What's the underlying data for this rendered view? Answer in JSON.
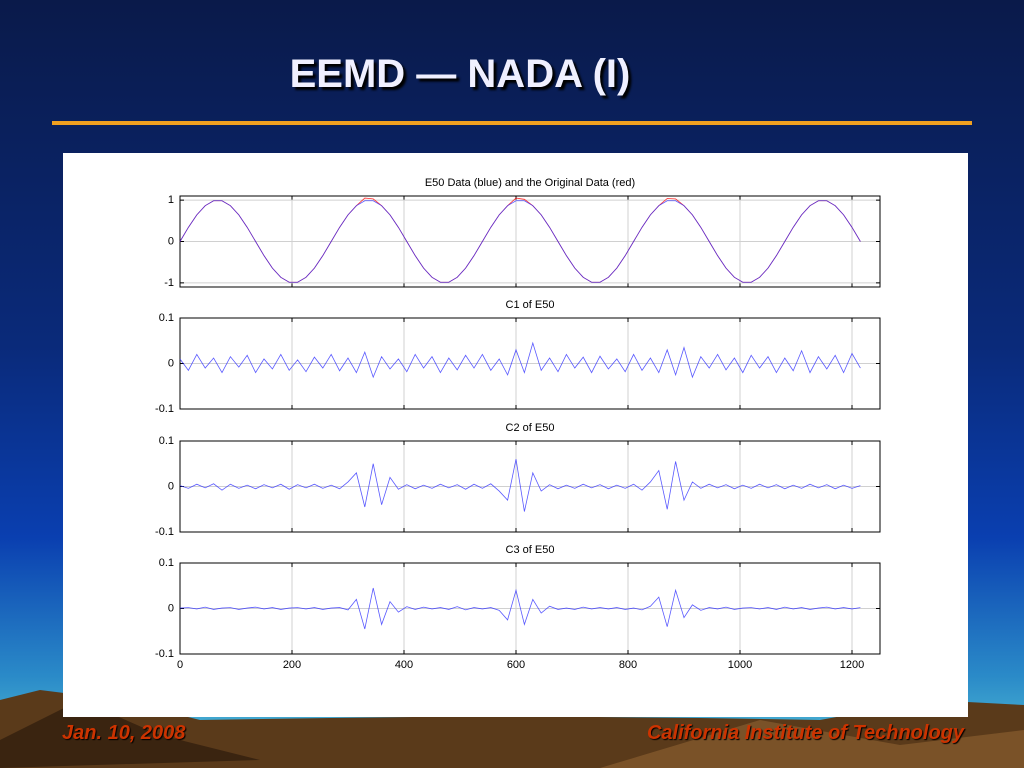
{
  "slide": {
    "title": "EEMD — NADA (I)",
    "date": "Jan. 10, 2008",
    "institution": "California Institute of Technology"
  },
  "chart_data": [
    {
      "type": "line",
      "title": "E50 Data (blue) and the Original Data (red)",
      "x": [
        0,
        15,
        30,
        45,
        60,
        75,
        90,
        105,
        120,
        135,
        150,
        165,
        180,
        195,
        210,
        225,
        240,
        255,
        270,
        285,
        300,
        315,
        330,
        345,
        360,
        375,
        390,
        405,
        420,
        435,
        450,
        465,
        480,
        495,
        510,
        525,
        540,
        555,
        570,
        585,
        600,
        615,
        630,
        645,
        660,
        675,
        690,
        705,
        720,
        735,
        750,
        765,
        780,
        795,
        810,
        825,
        840,
        855,
        870,
        885,
        900,
        915,
        930,
        945,
        960,
        975,
        990,
        1005,
        1020,
        1035,
        1050,
        1065,
        1080,
        1095,
        1110,
        1125,
        1140,
        1155,
        1170,
        1185,
        1200,
        1215
      ],
      "series": [
        {
          "color": "#ff0000",
          "values": [
            0,
            0.342,
            0.643,
            0.866,
            0.985,
            0.985,
            0.866,
            0.643,
            0.342,
            0,
            -0.342,
            -0.643,
            -0.866,
            -0.985,
            -0.985,
            -0.866,
            -0.643,
            -0.342,
            0,
            0.342,
            0.643,
            0.866,
            1.05,
            1.03,
            0.866,
            0.643,
            0.342,
            0,
            -0.342,
            -0.643,
            -0.866,
            -0.985,
            -0.985,
            -0.866,
            -0.643,
            -0.342,
            0,
            0.342,
            0.643,
            0.866,
            1.05,
            1.02,
            0.866,
            0.643,
            0.342,
            0,
            -0.342,
            -0.643,
            -0.866,
            -0.985,
            -0.985,
            -0.866,
            -0.643,
            -0.342,
            0,
            0.342,
            0.643,
            0.866,
            1.04,
            1.03,
            0.866,
            0.643,
            0.342,
            0,
            -0.342,
            -0.643,
            -0.866,
            -0.985,
            -0.985,
            -0.866,
            -0.643,
            -0.342,
            0,
            0.342,
            0.643,
            0.866,
            0.985,
            0.985,
            0.866,
            0.643,
            0.342,
            0
          ]
        },
        {
          "color": "#3030ff",
          "values": [
            0,
            0.342,
            0.643,
            0.866,
            0.985,
            0.985,
            0.866,
            0.643,
            0.342,
            0,
            -0.342,
            -0.643,
            -0.866,
            -0.985,
            -0.985,
            -0.866,
            -0.643,
            -0.342,
            0,
            0.342,
            0.643,
            0.866,
            0.985,
            0.985,
            0.866,
            0.643,
            0.342,
            0,
            -0.342,
            -0.643,
            -0.866,
            -0.985,
            -0.985,
            -0.866,
            -0.643,
            -0.342,
            0,
            0.342,
            0.643,
            0.866,
            0.985,
            0.985,
            0.866,
            0.643,
            0.342,
            0,
            -0.342,
            -0.643,
            -0.866,
            -0.985,
            -0.985,
            -0.866,
            -0.643,
            -0.342,
            0,
            0.342,
            0.643,
            0.866,
            0.985,
            0.985,
            0.866,
            0.643,
            0.342,
            0,
            -0.342,
            -0.643,
            -0.866,
            -0.985,
            -0.985,
            -0.866,
            -0.643,
            -0.342,
            0,
            0.342,
            0.643,
            0.866,
            0.985,
            0.985,
            0.866,
            0.643,
            0.342,
            0
          ]
        }
      ],
      "xlim": [
        0,
        1250
      ],
      "xticks": [
        0,
        200,
        400,
        600,
        800,
        1000,
        1200
      ],
      "ylim": [
        -1.1,
        1.1
      ],
      "yticks": [
        -1,
        0,
        1
      ],
      "grid": true,
      "show_xtick_labels": false
    },
    {
      "type": "line",
      "title": "C1 of E50",
      "x": [
        0,
        15,
        30,
        45,
        60,
        75,
        90,
        105,
        120,
        135,
        150,
        165,
        180,
        195,
        210,
        225,
        240,
        255,
        270,
        285,
        300,
        315,
        330,
        345,
        360,
        375,
        390,
        405,
        420,
        435,
        450,
        465,
        480,
        495,
        510,
        525,
        540,
        555,
        570,
        585,
        600,
        615,
        630,
        645,
        660,
        675,
        690,
        705,
        720,
        735,
        750,
        765,
        780,
        795,
        810,
        825,
        840,
        855,
        870,
        885,
        900,
        915,
        930,
        945,
        960,
        975,
        990,
        1005,
        1020,
        1035,
        1050,
        1065,
        1080,
        1095,
        1110,
        1125,
        1140,
        1155,
        1170,
        1185,
        1200,
        1215
      ],
      "series": [
        {
          "color": "#3030ff",
          "values": [
            0.01,
            -0.015,
            0.02,
            -0.01,
            0.012,
            -0.02,
            0.015,
            -0.008,
            0.018,
            -0.02,
            0.01,
            -0.012,
            0.02,
            -0.015,
            0.008,
            -0.018,
            0.014,
            -0.01,
            0.02,
            -0.016,
            0.012,
            -0.02,
            0.025,
            -0.03,
            0.015,
            -0.012,
            0.01,
            -0.018,
            0.02,
            -0.01,
            0.015,
            -0.02,
            0.012,
            -0.014,
            0.018,
            -0.01,
            0.02,
            -0.015,
            0.01,
            -0.025,
            0.03,
            -0.02,
            0.045,
            -0.015,
            0.012,
            -0.018,
            0.02,
            -0.01,
            0.014,
            -0.02,
            0.016,
            -0.012,
            0.01,
            -0.018,
            0.02,
            -0.015,
            0.012,
            -0.02,
            0.03,
            -0.025,
            0.035,
            -0.03,
            0.015,
            -0.01,
            0.02,
            -0.014,
            0.012,
            -0.02,
            0.018,
            -0.01,
            0.015,
            -0.02,
            0.012,
            -0.016,
            0.028,
            -0.02,
            0.015,
            -0.012,
            0.018,
            -0.02,
            0.022,
            -0.01
          ]
        }
      ],
      "xlim": [
        0,
        1250
      ],
      "xticks": [
        0,
        200,
        400,
        600,
        800,
        1000,
        1200
      ],
      "ylim": [
        -0.1,
        0.1
      ],
      "yticks": [
        -0.1,
        0,
        0.1
      ],
      "grid": true,
      "show_xtick_labels": false
    },
    {
      "type": "line",
      "title": "C2 of E50",
      "x": [
        0,
        15,
        30,
        45,
        60,
        75,
        90,
        105,
        120,
        135,
        150,
        165,
        180,
        195,
        210,
        225,
        240,
        255,
        270,
        285,
        300,
        315,
        330,
        345,
        360,
        375,
        390,
        405,
        420,
        435,
        450,
        465,
        480,
        495,
        510,
        525,
        540,
        555,
        570,
        585,
        600,
        615,
        630,
        645,
        660,
        675,
        690,
        705,
        720,
        735,
        750,
        765,
        780,
        795,
        810,
        825,
        840,
        855,
        870,
        885,
        900,
        915,
        930,
        945,
        960,
        975,
        990,
        1005,
        1020,
        1035,
        1050,
        1065,
        1080,
        1095,
        1110,
        1125,
        1140,
        1155,
        1170,
        1185,
        1200,
        1215
      ],
      "series": [
        {
          "color": "#3030ff",
          "values": [
            0.002,
            -0.004,
            0.005,
            -0.003,
            0.006,
            -0.008,
            0.005,
            -0.004,
            0.003,
            -0.005,
            0.004,
            -0.003,
            0.005,
            -0.006,
            0.004,
            -0.003,
            0.005,
            -0.004,
            0.003,
            -0.005,
            0.01,
            0.03,
            -0.045,
            0.05,
            -0.04,
            0.02,
            -0.006,
            0.004,
            -0.005,
            0.003,
            -0.004,
            0.005,
            -0.003,
            0.004,
            -0.006,
            0.005,
            -0.004,
            0.006,
            -0.01,
            -0.03,
            0.06,
            -0.055,
            0.03,
            -0.01,
            0.004,
            -0.005,
            0.003,
            -0.004,
            0.005,
            -0.003,
            0.004,
            -0.005,
            0.003,
            -0.004,
            0.005,
            -0.008,
            0.01,
            0.035,
            -0.05,
            0.055,
            -0.03,
            0.01,
            -0.004,
            0.005,
            -0.003,
            0.004,
            -0.005,
            0.003,
            -0.004,
            0.005,
            -0.003,
            0.004,
            -0.005,
            0.003,
            -0.004,
            0.005,
            -0.003,
            0.004,
            -0.005,
            0.003,
            -0.004,
            0.002
          ]
        }
      ],
      "xlim": [
        0,
        1250
      ],
      "xticks": [
        0,
        200,
        400,
        600,
        800,
        1000,
        1200
      ],
      "ylim": [
        -0.1,
        0.1
      ],
      "yticks": [
        -0.1,
        0,
        0.1
      ],
      "grid": true,
      "show_xtick_labels": false
    },
    {
      "type": "line",
      "title": "C3 of E50",
      "x": [
        0,
        15,
        30,
        45,
        60,
        75,
        90,
        105,
        120,
        135,
        150,
        165,
        180,
        195,
        210,
        225,
        240,
        255,
        270,
        285,
        300,
        315,
        330,
        345,
        360,
        375,
        390,
        405,
        420,
        435,
        450,
        465,
        480,
        495,
        510,
        525,
        540,
        555,
        570,
        585,
        600,
        615,
        630,
        645,
        660,
        675,
        690,
        705,
        720,
        735,
        750,
        765,
        780,
        795,
        810,
        825,
        840,
        855,
        870,
        885,
        900,
        915,
        930,
        945,
        960,
        975,
        990,
        1005,
        1020,
        1035,
        1050,
        1065,
        1080,
        1095,
        1110,
        1125,
        1140,
        1155,
        1170,
        1185,
        1200,
        1215
      ],
      "series": [
        {
          "color": "#3030ff",
          "values": [
            0.001,
            0.002,
            -0.001,
            0.003,
            -0.002,
            0.001,
            0.002,
            -0.002,
            0.001,
            0.003,
            -0.001,
            0.002,
            -0.002,
            0.001,
            0.002,
            -0.001,
            0.002,
            -0.002,
            0.001,
            0.002,
            -0.003,
            0.02,
            -0.045,
            0.045,
            -0.035,
            0.015,
            -0.008,
            0.004,
            -0.002,
            0.003,
            -0.001,
            0.002,
            -0.002,
            0.004,
            -0.003,
            0.002,
            -0.001,
            0.002,
            -0.004,
            -0.025,
            0.04,
            -0.035,
            0.02,
            -0.01,
            0.005,
            -0.002,
            0.001,
            -0.002,
            0.003,
            -0.001,
            0.002,
            -0.001,
            0.002,
            -0.002,
            0.001,
            -0.003,
            0.005,
            0.025,
            -0.04,
            0.04,
            -0.02,
            0.008,
            -0.004,
            0.002,
            -0.001,
            0.003,
            -0.002,
            0.001,
            0.002,
            -0.001,
            0.002,
            -0.002,
            0.003,
            -0.001,
            0.002,
            -0.002,
            0.001,
            0.003,
            -0.001,
            0.002,
            -0.001,
            0.002
          ]
        }
      ],
      "xlim": [
        0,
        1250
      ],
      "xticks": [
        0,
        200,
        400,
        600,
        800,
        1000,
        1200
      ],
      "ylim": [
        -0.1,
        0.1
      ],
      "yticks": [
        -0.1,
        0,
        0.1
      ],
      "grid": true,
      "show_xtick_labels": true
    }
  ]
}
